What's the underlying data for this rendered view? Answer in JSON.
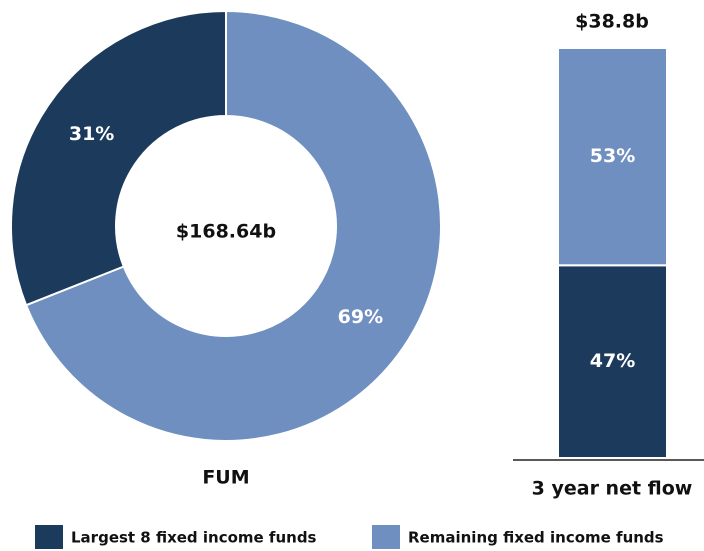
{
  "chart_data": [
    {
      "type": "donut",
      "title": "FUM",
      "center_label": "$168.64b",
      "categories": [
        "Largest 8 fixed income funds",
        "Remaining fixed income funds"
      ],
      "values": [
        31,
        69
      ],
      "value_labels": [
        "31%",
        "69%"
      ],
      "colors": [
        "#1c3a5c",
        "#6e8fbf"
      ]
    },
    {
      "type": "stacked_bar",
      "title": "3 year net flow",
      "total_label": "$38.8b",
      "values": [
        47,
        53
      ],
      "value_labels": [
        "47%",
        "53%"
      ],
      "colors": [
        "#1c3a5c",
        "#6e8fbf"
      ],
      "ylim": [
        0,
        100
      ]
    }
  ]
}
